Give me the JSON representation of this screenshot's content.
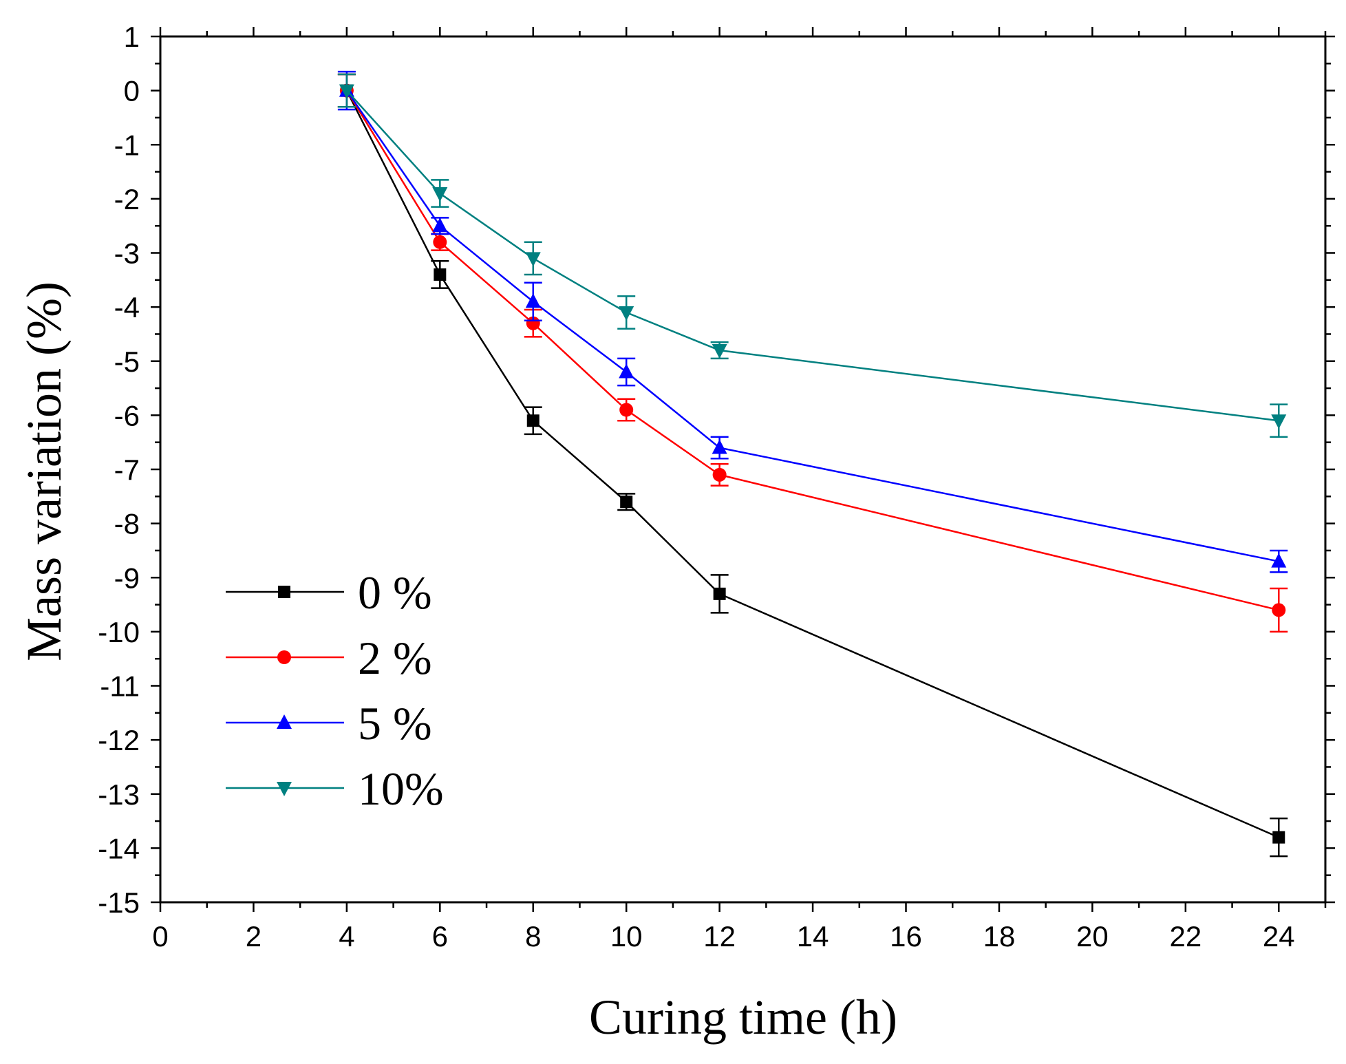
{
  "chart_data": {
    "type": "line",
    "title": "",
    "xlabel": "Curing time (h)",
    "ylabel": "Mass variation (%)",
    "xlim": [
      0,
      25
    ],
    "ylim": [
      -15,
      1
    ],
    "xticks": [
      0,
      2,
      4,
      6,
      8,
      10,
      12,
      14,
      16,
      18,
      20,
      22,
      24
    ],
    "yticks": [
      1,
      0,
      -1,
      -2,
      -3,
      -4,
      -5,
      -6,
      -7,
      -8,
      -9,
      -10,
      -11,
      -12,
      -13,
      -14,
      -15
    ],
    "x": [
      4,
      6,
      8,
      10,
      12,
      24
    ],
    "legend_position": "bottom-left",
    "series": [
      {
        "name": "0 %",
        "color": "#000000",
        "marker": "square",
        "values": [
          0,
          -3.4,
          -6.1,
          -7.6,
          -9.3,
          -13.8
        ],
        "errors": [
          0.3,
          0.25,
          0.25,
          0.15,
          0.35,
          0.35
        ]
      },
      {
        "name": "2 %",
        "color": "#ff0000",
        "marker": "circle",
        "values": [
          0,
          -2.8,
          -4.3,
          -5.9,
          -7.1,
          -9.6
        ],
        "errors": [
          0.3,
          0.15,
          0.25,
          0.2,
          0.2,
          0.4
        ]
      },
      {
        "name": "5 %",
        "color": "#0000ff",
        "marker": "triangle-up",
        "values": [
          0,
          -2.5,
          -3.9,
          -5.2,
          -6.6,
          -8.7
        ],
        "errors": [
          0.35,
          0.15,
          0.35,
          0.25,
          0.2,
          0.2
        ]
      },
      {
        "name": "10%",
        "color": "#008080",
        "marker": "triangle-down",
        "values": [
          0,
          -1.9,
          -3.1,
          -4.1,
          -4.8,
          -6.1
        ],
        "errors": [
          0.3,
          0.25,
          0.3,
          0.3,
          0.15,
          0.3
        ]
      }
    ]
  }
}
